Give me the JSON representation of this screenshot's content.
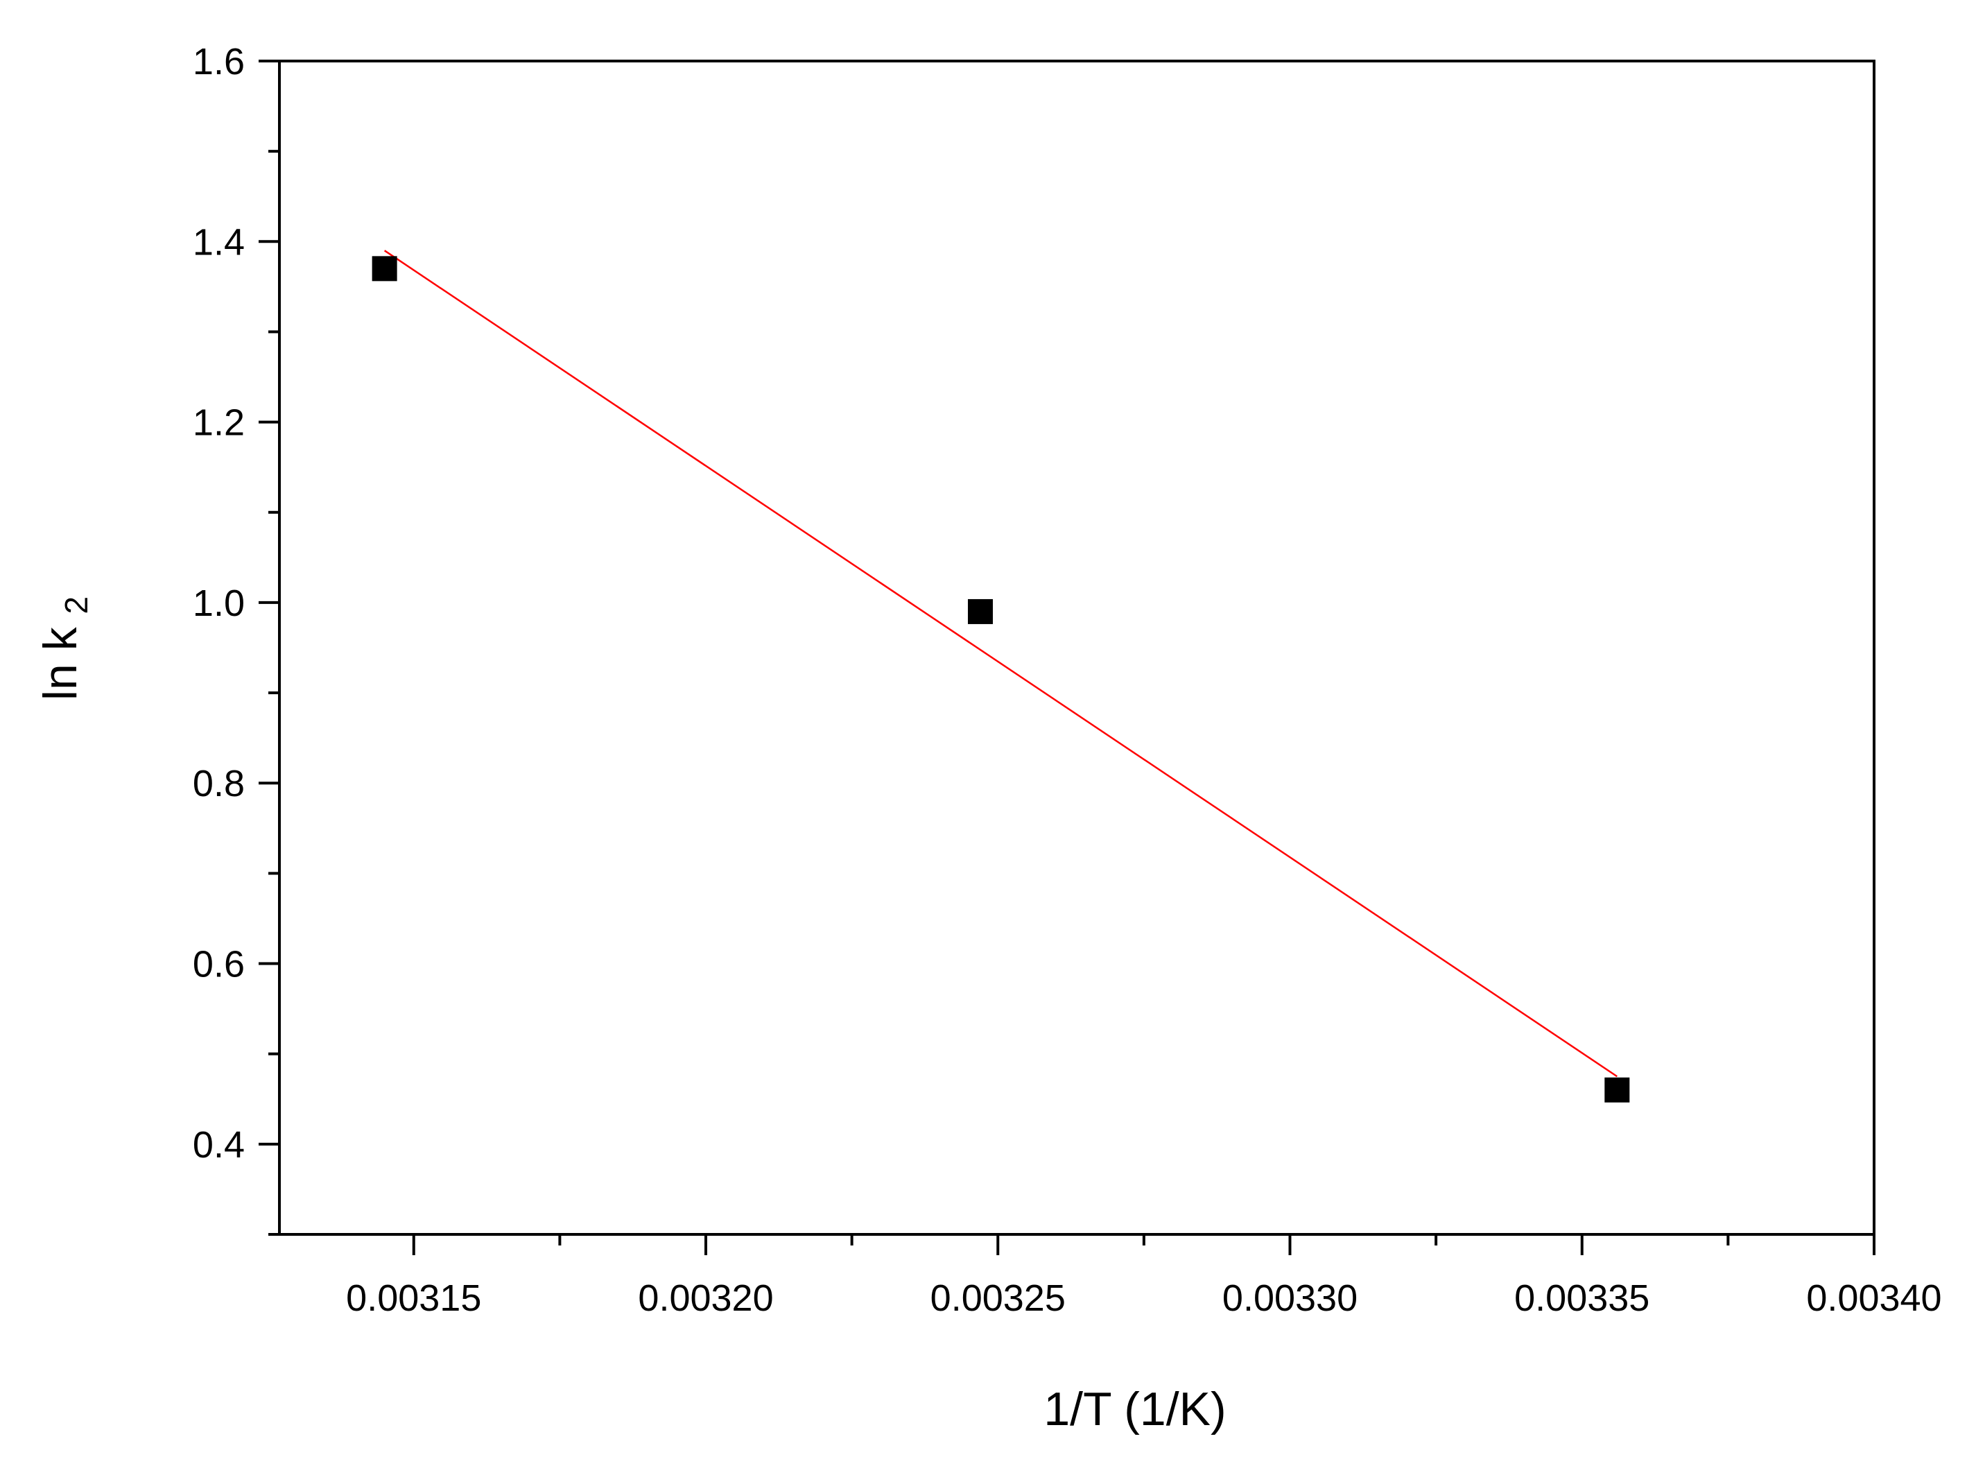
{
  "chart_data": {
    "type": "scatter",
    "title": "",
    "xlabel": "1/T (1/K)",
    "ylabel": {
      "main": "ln k",
      "subscript": "2"
    },
    "xlim": [
      0.003127,
      0.0034
    ],
    "ylim": [
      0.3,
      1.6
    ],
    "x_ticks": [
      "0.00315",
      "0.00320",
      "0.00325",
      "0.00330",
      "0.00335",
      "0.00340"
    ],
    "y_ticks": [
      "0.4",
      "0.6",
      "0.8",
      "1.0",
      "1.2",
      "1.4",
      "1.6"
    ],
    "grid": false,
    "legend": "none",
    "series": [
      {
        "marker": "square",
        "color": "#000000",
        "points": [
          {
            "x": 0.003145,
            "y": 1.37
          },
          {
            "x": 0.003247,
            "y": 0.99
          },
          {
            "x": 0.003356,
            "y": 0.46
          }
        ]
      }
    ],
    "fit_line": {
      "color": "#ff0000",
      "start": {
        "x": 0.003145,
        "y": 1.39
      },
      "end": {
        "x": 0.003356,
        "y": 0.475
      }
    }
  }
}
